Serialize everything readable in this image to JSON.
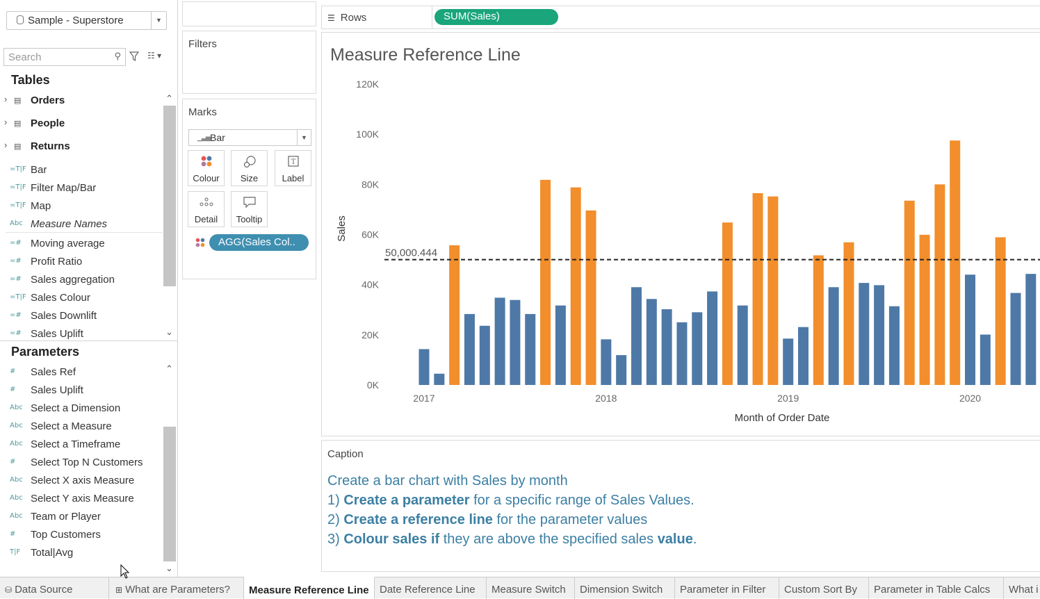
{
  "datasource": {
    "name": "Sample - Superstore"
  },
  "search": {
    "placeholder": "Search"
  },
  "tables": {
    "title": "Tables",
    "items": [
      "Orders",
      "People",
      "Returns"
    ]
  },
  "fields": [
    {
      "icon": "=T|F",
      "label": "Bar"
    },
    {
      "icon": "=T|F",
      "label": "Filter Map/Bar"
    },
    {
      "icon": "=T|F",
      "label": "Map"
    },
    {
      "icon": "Abc",
      "label": "Measure Names"
    },
    {
      "icon": "=#",
      "label": "Moving average"
    },
    {
      "icon": "=#",
      "label": "Profit Ratio"
    },
    {
      "icon": "=#",
      "label": "Sales aggregation"
    },
    {
      "icon": "=T|F",
      "label": "Sales Colour"
    },
    {
      "icon": "=#",
      "label": "Sales Downlift"
    },
    {
      "icon": "=#",
      "label": "Sales Uplift"
    }
  ],
  "parameters": {
    "title": "Parameters",
    "items": [
      {
        "icon": "#",
        "label": "Sales Ref"
      },
      {
        "icon": "#",
        "label": "Sales Uplift"
      },
      {
        "icon": "Abc",
        "label": "Select a Dimension"
      },
      {
        "icon": "Abc",
        "label": "Select a Measure"
      },
      {
        "icon": "Abc",
        "label": "Select a Timeframe"
      },
      {
        "icon": "#",
        "label": "Select Top N Customers"
      },
      {
        "icon": "Abc",
        "label": "Select X axis Measure"
      },
      {
        "icon": "Abc",
        "label": "Select Y axis Measure"
      },
      {
        "icon": "Abc",
        "label": "Team or Player"
      },
      {
        "icon": "#",
        "label": "Top Customers"
      },
      {
        "icon": "T|F",
        "label": "Total|Avg"
      }
    ]
  },
  "cards": {
    "filters": "Filters",
    "marks": "Marks",
    "mark_type": "Bar",
    "buttons": {
      "colour": "Colour",
      "size": "Size",
      "label": "Label",
      "detail": "Detail",
      "tooltip": "Tooltip"
    },
    "colour_pill": "AGG(Sales Col.."
  },
  "rows_shelf": {
    "label": "Rows",
    "pill": "SUM(Sales)"
  },
  "colors": {
    "blue": "#4e79a7",
    "orange": "#f28e2b",
    "rows_pill": "#1aa57a",
    "colour_pill": "#3f8fb1",
    "caption": "#3c7fa3"
  },
  "chart_data": {
    "type": "bar",
    "title": "Measure Reference Line",
    "xlabel": "Month of Order Date",
    "ylabel": "Sales",
    "ylim": [
      0,
      120000
    ],
    "yticks": [
      "0K",
      "20K",
      "40K",
      "60K",
      "80K",
      "100K",
      "120K"
    ],
    "xtick_labels": [
      "2017",
      "2018",
      "2019",
      "2020"
    ],
    "reference_line": {
      "value": 50000,
      "label": "50,000.444"
    },
    "series": [
      {
        "name": "SUM(Sales)",
        "values": [
          14300,
          4500,
          55700,
          28300,
          23600,
          34800,
          33900,
          28300,
          81800,
          31700,
          78800,
          69600,
          18200,
          11900,
          39000,
          34300,
          30200,
          25000,
          29000,
          37300,
          64800,
          31700,
          76500,
          75200,
          18500,
          23100,
          51700,
          39000,
          56900,
          40700,
          39800,
          31400,
          73500,
          59900,
          80000,
          97500,
          44000,
          20100,
          58900,
          36700,
          44300
        ]
      }
    ]
  },
  "caption": {
    "title": "Caption",
    "line1": "Create a bar chart with Sales by month",
    "line2_prefix": "1) ",
    "line2_bold": "Create a parameter",
    "line2_rest": " for a specific range of Sales Values.",
    "line3_prefix": "2) ",
    "line3_bold": "Create a reference line",
    "line3_rest": " for the parameter values",
    "line4_prefix": "3) ",
    "line4_bold": "Colour sales if",
    "line4_mid": " they are above the specified sales ",
    "line4_bold2": "value",
    "line4_end": "."
  },
  "tabs": [
    {
      "label": "Data Source",
      "icon": "data-source-icon"
    },
    {
      "label": "What are Parameters?",
      "icon": "sheet-icon"
    },
    {
      "label": "Measure Reference Line",
      "active": true
    },
    {
      "label": "Date Reference Line"
    },
    {
      "label": "Measure Switch"
    },
    {
      "label": "Dimension Switch"
    },
    {
      "label": "Parameter in Filter"
    },
    {
      "label": "Custom Sort By"
    },
    {
      "label": "Parameter in Table Calcs"
    },
    {
      "label": "What i"
    }
  ]
}
